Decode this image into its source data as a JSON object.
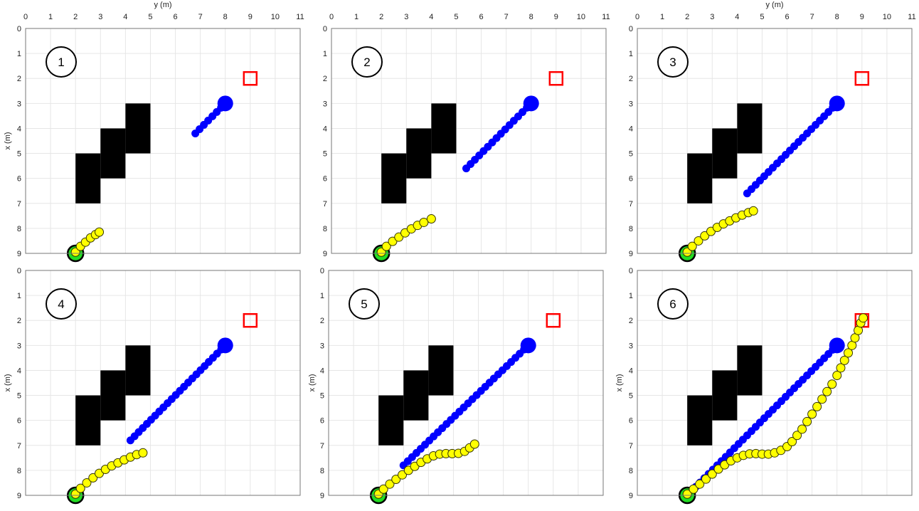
{
  "chart_data": [
    {
      "type": "scatter",
      "panel_label": "1",
      "xlabel": "y (m)",
      "ylabel": "x (m)",
      "xlim": [
        0,
        11
      ],
      "ylim": [
        0,
        9
      ],
      "y_reversed": true,
      "x_axis_position": "top",
      "grid": true,
      "x_ticks": [
        "0",
        "1",
        "2",
        "3",
        "4",
        "5",
        "6",
        "7",
        "8",
        "9",
        "10",
        "11"
      ],
      "y_ticks": [
        "0",
        "1",
        "2",
        "3",
        "4",
        "5",
        "6",
        "7",
        "8",
        "9"
      ],
      "obstacles": [
        {
          "y0": 4,
          "y1": 5,
          "x0": 3,
          "x1": 5
        },
        {
          "y0": 3,
          "y1": 4,
          "x0": 4,
          "x1": 6
        },
        {
          "y0": 2,
          "y1": 3,
          "x0": 5,
          "x1": 7
        }
      ],
      "goal": {
        "y": 9,
        "x": 2
      },
      "start_marker": {
        "y": 2,
        "x": 9
      },
      "blue_marker": {
        "y": 8,
        "x": 3
      },
      "blue_trail": {
        "from": {
          "y": 8,
          "x": 3
        },
        "to": {
          "y": 6.8,
          "x": 4.2
        },
        "count": 8
      },
      "yellow_trail": [
        {
          "y": 2.0,
          "x": 8.95
        },
        {
          "y": 2.2,
          "x": 8.72
        },
        {
          "y": 2.4,
          "x": 8.55
        },
        {
          "y": 2.6,
          "x": 8.38
        },
        {
          "y": 2.8,
          "x": 8.25
        },
        {
          "y": 2.95,
          "x": 8.15
        }
      ]
    },
    {
      "type": "scatter",
      "panel_label": "2",
      "xlabel": "",
      "ylabel": "",
      "xlim": [
        0,
        11
      ],
      "ylim": [
        0,
        9
      ],
      "y_reversed": true,
      "x_axis_position": "top",
      "grid": true,
      "x_ticks": [
        "0",
        "1",
        "2",
        "3",
        "4",
        "5",
        "6",
        "7",
        "8",
        "9",
        "10",
        "11"
      ],
      "y_ticks": [
        "0",
        "1",
        "2",
        "3",
        "4",
        "5",
        "6",
        "7",
        "8",
        "9"
      ],
      "obstacles": [
        {
          "y0": 4,
          "y1": 5,
          "x0": 3,
          "x1": 5
        },
        {
          "y0": 3,
          "y1": 4,
          "x0": 4,
          "x1": 6
        },
        {
          "y0": 2,
          "y1": 3,
          "x0": 5,
          "x1": 7
        }
      ],
      "goal": {
        "y": 9,
        "x": 2
      },
      "start_marker": {
        "y": 2,
        "x": 9
      },
      "blue_marker": {
        "y": 8,
        "x": 3
      },
      "blue_trail": {
        "from": {
          "y": 8,
          "x": 3
        },
        "to": {
          "y": 5.4,
          "x": 5.6
        },
        "count": 16
      },
      "yellow_trail": [
        {
          "y": 2.0,
          "x": 8.95
        },
        {
          "y": 2.2,
          "x": 8.72
        },
        {
          "y": 2.45,
          "x": 8.52
        },
        {
          "y": 2.7,
          "x": 8.35
        },
        {
          "y": 2.95,
          "x": 8.18
        },
        {
          "y": 3.2,
          "x": 8.02
        },
        {
          "y": 3.45,
          "x": 7.88
        },
        {
          "y": 3.7,
          "x": 7.76
        },
        {
          "y": 4.0,
          "x": 7.62
        }
      ]
    },
    {
      "type": "scatter",
      "panel_label": "3",
      "xlabel": "y (m)",
      "ylabel": "",
      "xlim": [
        0,
        11
      ],
      "ylim": [
        0,
        9
      ],
      "y_reversed": true,
      "x_axis_position": "top",
      "grid": true,
      "x_ticks": [
        "0",
        "1",
        "2",
        "3",
        "4",
        "5",
        "6",
        "7",
        "8",
        "9",
        "10",
        "11"
      ],
      "y_ticks": [
        "0",
        "1",
        "2",
        "3",
        "4",
        "5",
        "6",
        "7",
        "8",
        "9"
      ],
      "obstacles": [
        {
          "y0": 4,
          "y1": 5,
          "x0": 3,
          "x1": 5
        },
        {
          "y0": 3,
          "y1": 4,
          "x0": 4,
          "x1": 6
        },
        {
          "y0": 2,
          "y1": 3,
          "x0": 5,
          "x1": 7
        }
      ],
      "goal": {
        "y": 9,
        "x": 2
      },
      "start_marker": {
        "y": 2,
        "x": 9
      },
      "blue_marker": {
        "y": 8,
        "x": 3
      },
      "blue_trail": {
        "from": {
          "y": 8,
          "x": 3
        },
        "to": {
          "y": 4.4,
          "x": 6.6
        },
        "count": 22
      },
      "yellow_trail": [
        {
          "y": 2.0,
          "x": 8.95
        },
        {
          "y": 2.2,
          "x": 8.72
        },
        {
          "y": 2.45,
          "x": 8.5
        },
        {
          "y": 2.7,
          "x": 8.3
        },
        {
          "y": 2.95,
          "x": 8.12
        },
        {
          "y": 3.2,
          "x": 7.96
        },
        {
          "y": 3.45,
          "x": 7.82
        },
        {
          "y": 3.7,
          "x": 7.7
        },
        {
          "y": 3.95,
          "x": 7.58
        },
        {
          "y": 4.2,
          "x": 7.47
        },
        {
          "y": 4.45,
          "x": 7.37
        },
        {
          "y": 4.65,
          "x": 7.3
        }
      ]
    },
    {
      "type": "scatter",
      "panel_label": "4",
      "xlabel": "",
      "ylabel": "x (m)",
      "xlim": [
        0,
        11
      ],
      "ylim": [
        0,
        9
      ],
      "y_reversed": true,
      "x_axis_position": "top",
      "grid": true,
      "x_ticks": [],
      "y_ticks": [
        "0",
        "1",
        "2",
        "3",
        "4",
        "5",
        "6",
        "7",
        "8",
        "9"
      ],
      "obstacles": [
        {
          "y0": 4,
          "y1": 5,
          "x0": 3,
          "x1": 5
        },
        {
          "y0": 3,
          "y1": 4,
          "x0": 4,
          "x1": 6
        },
        {
          "y0": 2,
          "y1": 3,
          "x0": 5,
          "x1": 7
        }
      ],
      "goal": {
        "y": 9,
        "x": 2
      },
      "start_marker": {
        "y": 2,
        "x": 9
      },
      "blue_marker": {
        "y": 8,
        "x": 3
      },
      "blue_trail": {
        "from": {
          "y": 8,
          "x": 3
        },
        "to": {
          "y": 4.2,
          "x": 6.8
        },
        "count": 24
      },
      "yellow_trail": [
        {
          "y": 2.0,
          "x": 8.95
        },
        {
          "y": 2.2,
          "x": 8.72
        },
        {
          "y": 2.45,
          "x": 8.5
        },
        {
          "y": 2.7,
          "x": 8.3
        },
        {
          "y": 2.95,
          "x": 8.12
        },
        {
          "y": 3.2,
          "x": 7.96
        },
        {
          "y": 3.45,
          "x": 7.82
        },
        {
          "y": 3.7,
          "x": 7.7
        },
        {
          "y": 3.95,
          "x": 7.58
        },
        {
          "y": 4.2,
          "x": 7.47
        },
        {
          "y": 4.45,
          "x": 7.37
        },
        {
          "y": 4.7,
          "x": 7.3
        }
      ]
    },
    {
      "type": "scatter",
      "panel_label": "5",
      "xlabel": "",
      "ylabel": "x (m)",
      "xlim": [
        0,
        11
      ],
      "ylim": [
        0,
        9
      ],
      "y_reversed": true,
      "x_axis_position": "top",
      "grid": true,
      "x_ticks": [],
      "y_ticks": [
        "0",
        "1",
        "2",
        "3",
        "4",
        "5",
        "6",
        "7",
        "8",
        "9"
      ],
      "obstacles": [
        {
          "y0": 4,
          "y1": 5,
          "x0": 3,
          "x1": 5
        },
        {
          "y0": 3,
          "y1": 4,
          "x0": 4,
          "x1": 6
        },
        {
          "y0": 2,
          "y1": 3,
          "x0": 5,
          "x1": 7
        }
      ],
      "goal": {
        "y": 9,
        "x": 2
      },
      "start_marker": {
        "y": 2,
        "x": 9
      },
      "blue_marker": {
        "y": 8,
        "x": 3
      },
      "blue_trail": {
        "from": {
          "y": 8,
          "x": 3
        },
        "to": {
          "y": 3.0,
          "x": 7.8
        },
        "count": 30
      },
      "yellow_trail": [
        {
          "y": 2.0,
          "x": 8.95
        },
        {
          "y": 2.2,
          "x": 8.75
        },
        {
          "y": 2.45,
          "x": 8.55
        },
        {
          "y": 2.7,
          "x": 8.36
        },
        {
          "y": 2.95,
          "x": 8.18
        },
        {
          "y": 3.2,
          "x": 8.0
        },
        {
          "y": 3.45,
          "x": 7.84
        },
        {
          "y": 3.7,
          "x": 7.68
        },
        {
          "y": 3.95,
          "x": 7.54
        },
        {
          "y": 4.2,
          "x": 7.42
        },
        {
          "y": 4.45,
          "x": 7.35
        },
        {
          "y": 4.7,
          "x": 7.33
        },
        {
          "y": 4.95,
          "x": 7.33
        },
        {
          "y": 5.2,
          "x": 7.32
        },
        {
          "y": 5.45,
          "x": 7.24
        },
        {
          "y": 5.65,
          "x": 7.1
        },
        {
          "y": 5.85,
          "x": 6.95
        }
      ]
    },
    {
      "type": "scatter",
      "panel_label": "6",
      "xlabel": "",
      "ylabel": "x (m)",
      "xlim": [
        0,
        11
      ],
      "ylim": [
        0,
        9
      ],
      "y_reversed": true,
      "x_axis_position": "top",
      "grid": true,
      "x_ticks": [],
      "y_ticks": [
        "0",
        "1",
        "2",
        "3",
        "4",
        "5",
        "6",
        "7",
        "8",
        "9"
      ],
      "obstacles": [
        {
          "y0": 4,
          "y1": 5,
          "x0": 3,
          "x1": 5
        },
        {
          "y0": 3,
          "y1": 4,
          "x0": 4,
          "x1": 6
        },
        {
          "y0": 2,
          "y1": 3,
          "x0": 5,
          "x1": 7
        }
      ],
      "goal": {
        "y": 9,
        "x": 2
      },
      "start_marker": {
        "y": 2,
        "x": 9
      },
      "blue_marker": {
        "y": 8,
        "x": 3
      },
      "blue_trail": {
        "from": {
          "y": 8,
          "x": 3
        },
        "to": {
          "y": 2.0,
          "x": 9.0
        },
        "count": 36
      },
      "yellow_trail": [
        {
          "y": 2.0,
          "x": 8.95
        },
        {
          "y": 2.25,
          "x": 8.75
        },
        {
          "y": 2.5,
          "x": 8.55
        },
        {
          "y": 2.75,
          "x": 8.35
        },
        {
          "y": 3.0,
          "x": 8.15
        },
        {
          "y": 3.25,
          "x": 7.95
        },
        {
          "y": 3.5,
          "x": 7.78
        },
        {
          "y": 3.75,
          "x": 7.62
        },
        {
          "y": 4.0,
          "x": 7.5
        },
        {
          "y": 4.25,
          "x": 7.4
        },
        {
          "y": 4.5,
          "x": 7.34
        },
        {
          "y": 4.75,
          "x": 7.33
        },
        {
          "y": 5.0,
          "x": 7.35
        },
        {
          "y": 5.25,
          "x": 7.35
        },
        {
          "y": 5.5,
          "x": 7.3
        },
        {
          "y": 5.75,
          "x": 7.2
        },
        {
          "y": 6.0,
          "x": 7.05
        },
        {
          "y": 6.2,
          "x": 6.85
        },
        {
          "y": 6.4,
          "x": 6.6
        },
        {
          "y": 6.6,
          "x": 6.35
        },
        {
          "y": 6.8,
          "x": 6.05
        },
        {
          "y": 7.0,
          "x": 5.75
        },
        {
          "y": 7.2,
          "x": 5.45
        },
        {
          "y": 7.4,
          "x": 5.15
        },
        {
          "y": 7.6,
          "x": 4.85
        },
        {
          "y": 7.8,
          "x": 4.55
        },
        {
          "y": 8.0,
          "x": 4.2
        },
        {
          "y": 8.15,
          "x": 3.9
        },
        {
          "y": 8.3,
          "x": 3.6
        },
        {
          "y": 8.45,
          "x": 3.3
        },
        {
          "y": 8.6,
          "x": 3.0
        },
        {
          "y": 8.72,
          "x": 2.7
        },
        {
          "y": 8.85,
          "x": 2.4
        },
        {
          "y": 8.95,
          "x": 2.1
        },
        {
          "y": 9.05,
          "x": 1.9
        }
      ]
    }
  ]
}
